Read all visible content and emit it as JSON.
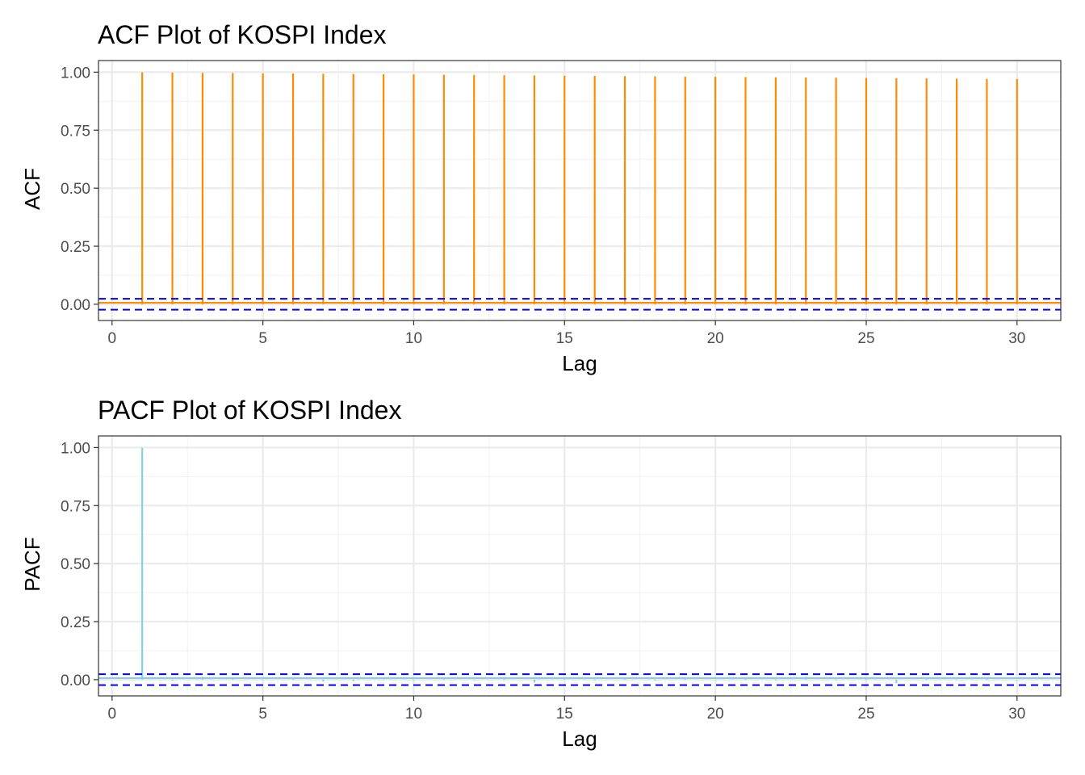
{
  "chart_data": [
    {
      "type": "bar",
      "title": "ACF Plot of KOSPI Index",
      "xlabel": "Lag",
      "ylabel": "ACF",
      "x_ticks": [
        "0",
        "5",
        "10",
        "15",
        "20",
        "25",
        "30"
      ],
      "y_ticks": [
        "0.00",
        "0.25",
        "0.50",
        "0.75",
        "1.00"
      ],
      "xlim": [
        -0.45,
        31.45
      ],
      "ylim": [
        -0.07,
        1.05
      ],
      "grid": true,
      "legend": "none",
      "series": [
        {
          "color": "#ff8c00",
          "x": [
            1,
            2,
            3,
            4,
            5,
            6,
            7,
            8,
            9,
            10,
            11,
            12,
            13,
            14,
            15,
            16,
            17,
            18,
            19,
            20,
            21,
            22,
            23,
            24,
            25,
            26,
            27,
            28,
            29,
            30
          ],
          "values": [
            0.999,
            0.998,
            0.997,
            0.996,
            0.995,
            0.994,
            0.993,
            0.992,
            0.991,
            0.99,
            0.989,
            0.988,
            0.987,
            0.986,
            0.985,
            0.984,
            0.983,
            0.982,
            0.981,
            0.98,
            0.979,
            0.978,
            0.977,
            0.976,
            0.975,
            0.974,
            0.973,
            0.972,
            0.971,
            0.97
          ]
        }
      ],
      "confidence_bounds": {
        "values": [
          0.0235,
          -0.0235
        ],
        "color": "#0000ff",
        "style": "dashed"
      },
      "zero_line": {
        "value": 0,
        "color": "#ff8c00"
      }
    },
    {
      "type": "bar",
      "title": "PACF Plot of KOSPI Index",
      "xlabel": "Lag",
      "ylabel": "PACF",
      "x_ticks": [
        "0",
        "5",
        "10",
        "15",
        "20",
        "25",
        "30"
      ],
      "y_ticks": [
        "0.00",
        "0.25",
        "0.50",
        "0.75",
        "1.00"
      ],
      "xlim": [
        -0.45,
        31.45
      ],
      "ylim": [
        -0.07,
        1.05
      ],
      "grid": true,
      "legend": "none",
      "series": [
        {
          "color": "#87ceeb",
          "x": [
            1,
            2,
            3,
            4,
            5,
            6,
            7,
            8,
            9,
            10,
            11,
            12,
            13,
            14,
            15,
            16,
            17,
            18,
            19,
            20,
            21,
            22,
            23,
            24,
            25,
            26,
            27,
            28,
            29,
            30
          ],
          "values": [
            0.999,
            -0.004,
            0.012,
            0.003,
            -0.002,
            0.011,
            -0.008,
            -0.006,
            0.002,
            -0.003,
            0.004,
            -0.002,
            0.004,
            -0.012,
            0.003,
            -0.003,
            0.009,
            -0.004,
            0.006,
            -0.002,
            0.003,
            -0.004,
            0.013,
            -0.003,
            0.004,
            -0.015,
            0.003,
            -0.002,
            0.004,
            -0.003
          ]
        }
      ],
      "confidence_bounds": {
        "values": [
          0.0235,
          -0.0235
        ],
        "color": "#0000ff",
        "style": "dashed"
      },
      "zero_line": {
        "value": 0,
        "color": "#87ceeb"
      }
    }
  ]
}
